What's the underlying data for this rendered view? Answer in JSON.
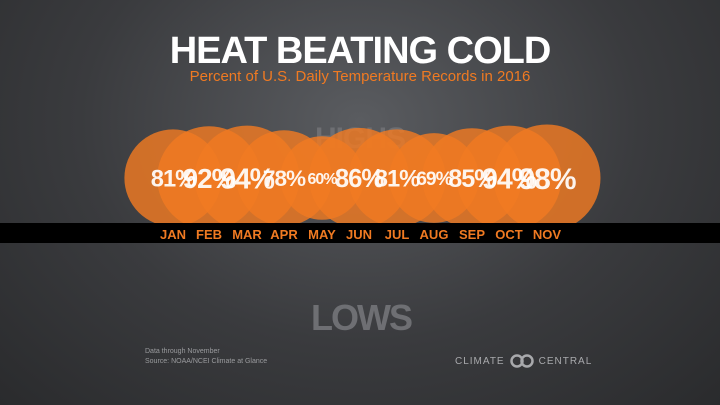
{
  "header": {
    "title": "HEAT BEATING COLD",
    "subtitle": "Percent of U.S. Daily Temperature Records in 2016"
  },
  "chart_data": {
    "type": "bubble",
    "title": "HEAT BEATING COLD",
    "subtitle": "Percent of U.S. Daily Temperature Records in 2016",
    "categories": [
      "JAN",
      "FEB",
      "MAR",
      "APR",
      "MAY",
      "JUN",
      "JUL",
      "AUG",
      "SEP",
      "OCT",
      "NOV"
    ],
    "series": [
      {
        "name": "HIGHS",
        "values": [
          81,
          92,
          94,
          78,
          60,
          86,
          81,
          69,
          85,
          94,
          98
        ]
      }
    ],
    "value_labels": [
      "81%",
      "92%",
      "94%",
      "78%",
      "60%",
      "86%",
      "81%",
      "69%",
      "85%",
      "94%",
      "98%"
    ],
    "upper_label": "HIGHS",
    "lower_label": "LOWS",
    "legend": "none",
    "grid": false,
    "colors": {
      "bubble": "#f07a22",
      "band": "#000000",
      "month_text": "#f07a22",
      "axis_label": "#6e6f73"
    }
  },
  "footer": {
    "note_line1": "Data through November",
    "note_line2": "Source: NOAA/NCEI Climate at Glance",
    "logo_text_left": "CLIMATE",
    "logo_text_right": "CENTRAL",
    "logo_icon": "linked-rings-icon"
  }
}
